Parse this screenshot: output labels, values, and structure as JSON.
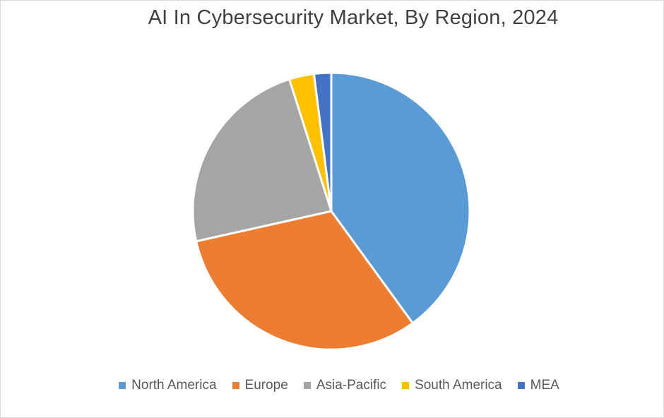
{
  "chart_data": {
    "type": "pie",
    "title": "AI In Cybersecurity Market, By Region, 2024",
    "categories": [
      "North America",
      "Europe",
      "Asia-Pacific",
      "South America",
      "MEA"
    ],
    "values": [
      40,
      31.5,
      23.6,
      2.9,
      2.0
    ],
    "unit": "%",
    "colors": [
      "#5B9BD5",
      "#ED7D31",
      "#A5A5A5",
      "#FFC000",
      "#4472C4"
    ],
    "legend_position": "bottom",
    "start_angle_deg": 0,
    "direction": "clockwise"
  }
}
